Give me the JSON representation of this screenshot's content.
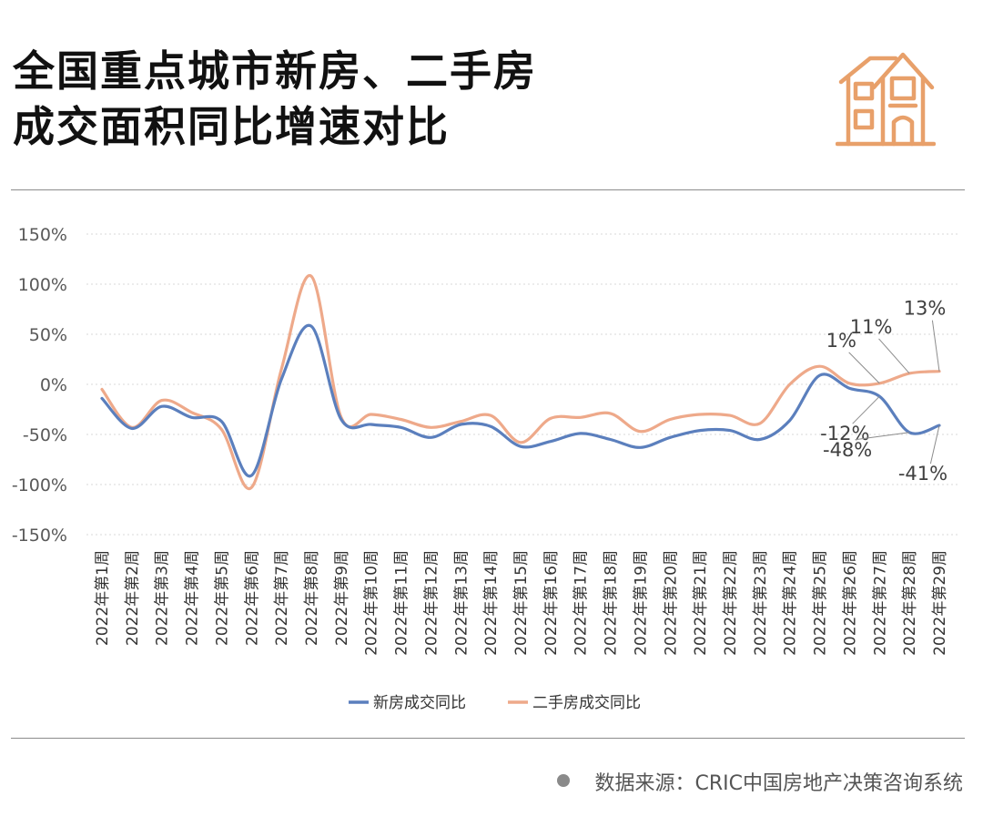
{
  "title_lines": [
    "全国重点城市新房、二手房",
    "成交面积同比增速对比"
  ],
  "icon": "house-icon",
  "source": "数据来源：CRIC中国房地产决策咨询系统",
  "colors": {
    "new": "#5b7fbd",
    "second": "#eea98a",
    "icon": "#e8a06a",
    "grid": "#d9d9d9"
  },
  "chart_data": {
    "type": "line",
    "categories": [
      "2022年第1周",
      "2022年第2周",
      "2022年第3周",
      "2022年第4周",
      "2022年第5周",
      "2022年第6周",
      "2022年第7周",
      "2022年第8周",
      "2022年第9周",
      "2022年第10周",
      "2022年第11周",
      "2022年第12周",
      "2022年第13周",
      "2022年第14周",
      "2022年第15周",
      "2022年第16周",
      "2022年第17周",
      "2022年第18周",
      "2022年第19周",
      "2022年第20周",
      "2022年第21周",
      "2022年第22周",
      "2022年第23周",
      "2022年第24周",
      "2022年第25周",
      "2022年第26周",
      "2022年第27周",
      "2022年第28周",
      "2022年第29周"
    ],
    "series": [
      {
        "name": "新房成交同比",
        "color": "#5b7fbd",
        "values": [
          -14,
          -44,
          -22,
          -33,
          -37,
          -91,
          5,
          58,
          -35,
          -40,
          -43,
          -53,
          -40,
          -42,
          -62,
          -57,
          -49,
          -55,
          -63,
          -53,
          -46,
          -46,
          -55,
          -36,
          9,
          -4,
          -12,
          -48,
          -41
        ]
      },
      {
        "name": "二手房成交同比",
        "color": "#eea98a",
        "values": [
          -5,
          -43,
          -16,
          -28,
          -45,
          -103,
          15,
          108,
          -33,
          -30,
          -35,
          -43,
          -37,
          -31,
          -58,
          -34,
          -33,
          -29,
          -47,
          -35,
          -30,
          -31,
          -39,
          0,
          18,
          1,
          1,
          11,
          13
        ]
      }
    ],
    "ylim": [
      -150,
      150
    ],
    "yticks": [
      -150,
      -100,
      -50,
      0,
      50,
      100,
      150
    ],
    "ytick_labels": [
      "-150%",
      "-100%",
      "-50%",
      "0%",
      "50%",
      "100%",
      "150%"
    ],
    "grid": true,
    "legend": "bottom",
    "annotations": [
      {
        "text": "1%",
        "series": 1,
        "index": 26
      },
      {
        "text": "11%",
        "series": 1,
        "index": 27
      },
      {
        "text": "13%",
        "series": 1,
        "index": 28
      },
      {
        "text": "-12%",
        "series": 0,
        "index": 26
      },
      {
        "text": "-48%",
        "series": 0,
        "index": 27
      },
      {
        "text": "-41%",
        "series": 0,
        "index": 28
      }
    ]
  }
}
